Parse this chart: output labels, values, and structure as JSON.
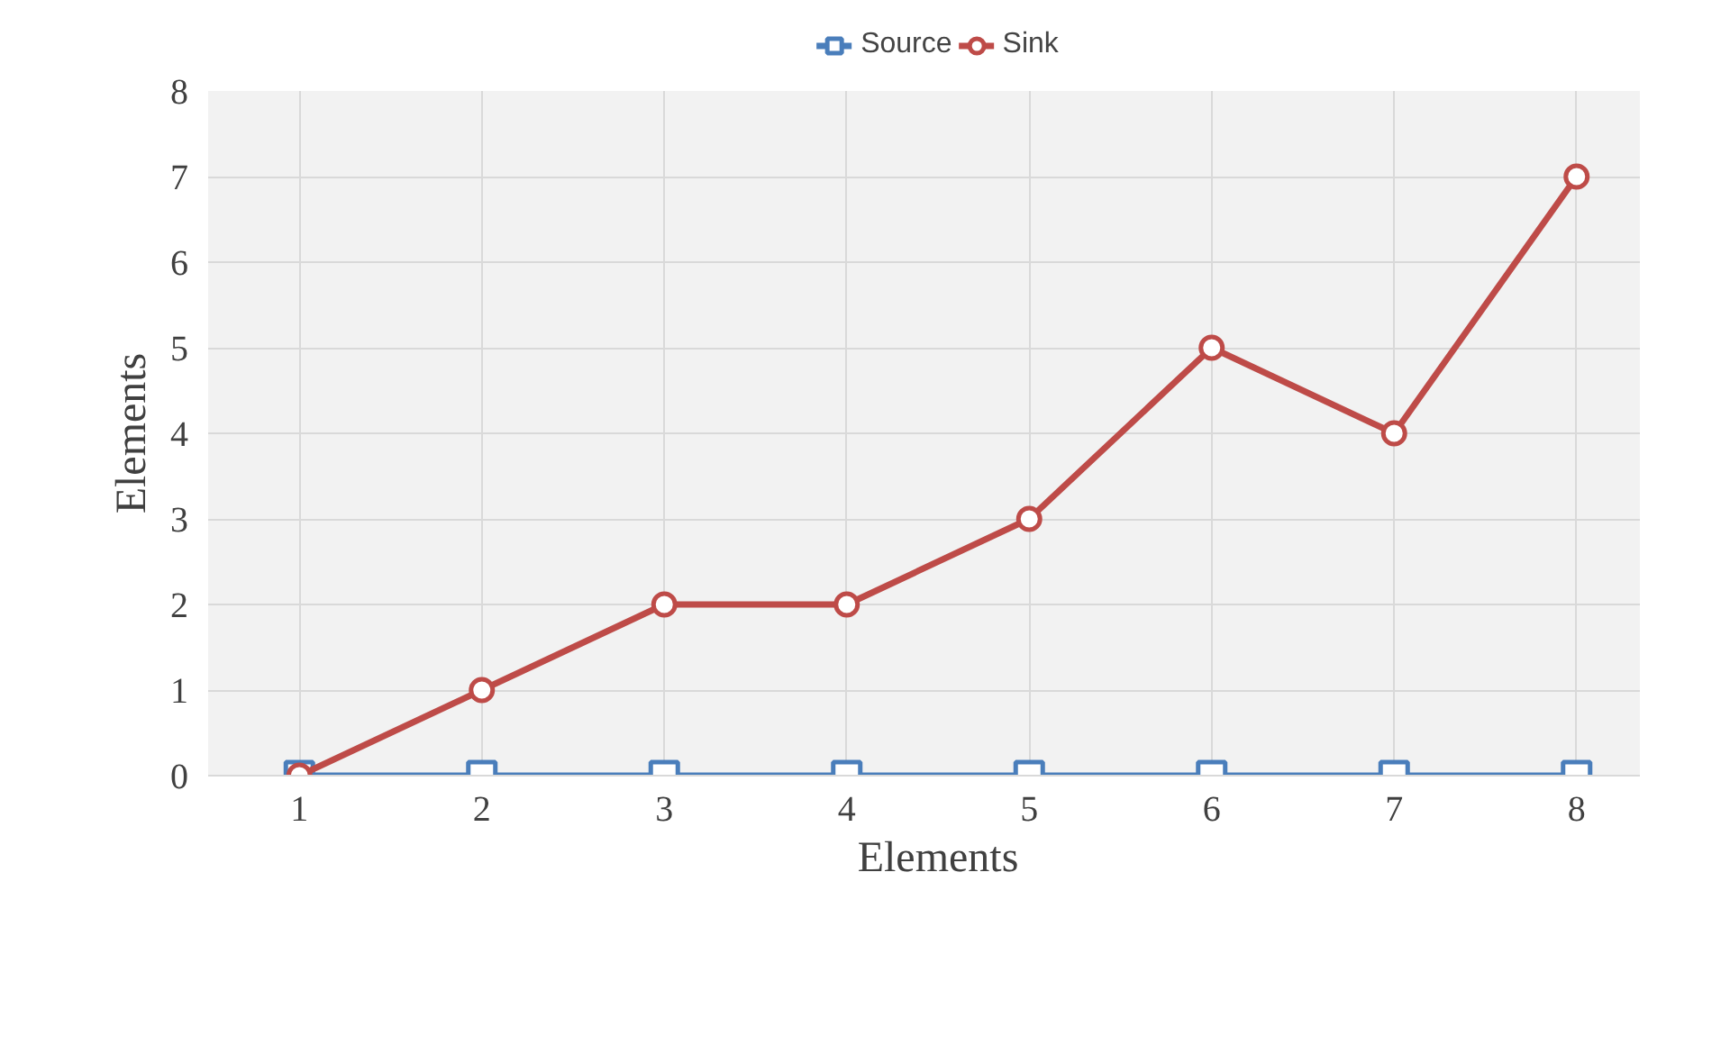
{
  "chart_data": {
    "type": "line",
    "xlabel": "Elements",
    "ylabel": "Elements",
    "categories": [
      "1",
      "2",
      "3",
      "4",
      "5",
      "6",
      "7",
      "8"
    ],
    "series": [
      {
        "name": "Source",
        "color": "#4a7ebb",
        "marker": "square",
        "values": [
          0,
          0,
          0,
          0,
          0,
          0,
          0,
          0
        ]
      },
      {
        "name": "Sink",
        "color": "#be4b48",
        "marker": "circle",
        "values": [
          0,
          1,
          2,
          2,
          3,
          5,
          4,
          7
        ]
      }
    ],
    "ylim": [
      0,
      8
    ],
    "yticks": [
      0,
      1,
      2,
      3,
      4,
      5,
      6,
      7,
      8
    ],
    "grid": true,
    "legend": "top",
    "line_style": "solid"
  }
}
